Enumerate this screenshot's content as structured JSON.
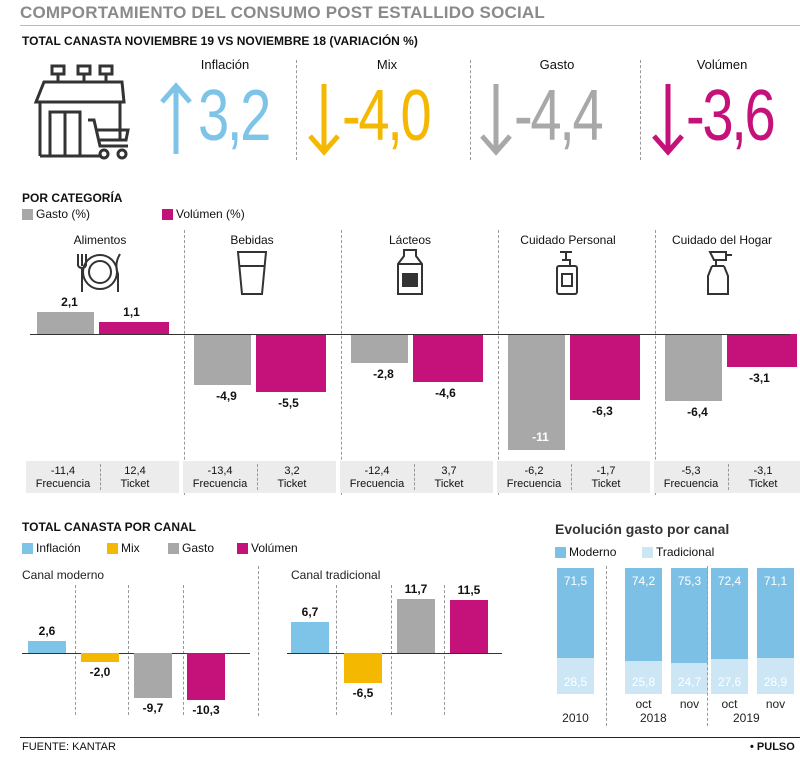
{
  "title": "COMPORTAMIENTO DEL CONSUMO POST ESTALLIDO SOCIAL",
  "subtitle": "TOTAL CANASTA NOVIEMBRE 19 VS NOVIEMBRE 18 (VARIACIÓN %)",
  "colors": {
    "inflacion": "#7ec4e8",
    "mix": "#f5b800",
    "gasto": "#a8a8a8",
    "volumen": "#c5117a",
    "moderno": "#7cc0e6",
    "tradicional": "#cce6f5"
  },
  "top_metrics": [
    {
      "label": "Inflación",
      "value": "3,2",
      "direction": "up",
      "color": "#7ec4e8"
    },
    {
      "label": "Mix",
      "value": "-4,0",
      "direction": "down",
      "color": "#f5b800"
    },
    {
      "label": "Gasto",
      "value": "-4,4",
      "direction": "down",
      "color": "#a8a8a8"
    },
    {
      "label": "Volúmen",
      "value": "-3,6",
      "direction": "down",
      "color": "#c5117a"
    }
  ],
  "categoria": {
    "heading": "POR CATEGORÍA",
    "legend": [
      {
        "label": "Gasto (%)",
        "color": "#a8a8a8"
      },
      {
        "label": "Volúmen (%)",
        "color": "#c5117a"
      }
    ],
    "foot_labels": {
      "frecuencia": "Frecuencia",
      "ticket": "Ticket"
    }
  },
  "canal": {
    "heading": "TOTAL CANASTA POR CANAL",
    "legend": [
      {
        "label": "Inflación",
        "color": "#7ec4e8"
      },
      {
        "label": "Mix",
        "color": "#f5b800"
      },
      {
        "label": "Gasto",
        "color": "#a8a8a8"
      },
      {
        "label": "Volúmen",
        "color": "#c5117a"
      }
    ]
  },
  "evolucion": {
    "heading": "Evolución gasto por canal",
    "legend": [
      {
        "label": "Moderno",
        "color": "#7cc0e6"
      },
      {
        "label": "Tradicional",
        "color": "#cce6f5"
      }
    ]
  },
  "chart_data": [
    {
      "type": "bar",
      "categories": [
        "Alimentos",
        "Bebidas",
        "Lácteos",
        "Cuidado Personal",
        "Cuidado del Hogar"
      ],
      "series": [
        {
          "name": "Gasto (%)",
          "values": [
            2.1,
            -4.9,
            -2.8,
            -11,
            -6.4
          ],
          "labels": [
            "2,1",
            "-4,9",
            "-2,8",
            "-11",
            "-6,4"
          ]
        },
        {
          "name": "Volúmen (%)",
          "values": [
            1.1,
            -5.5,
            -4.6,
            -6.3,
            -3.1
          ],
          "labels": [
            "1,1",
            "-5,5",
            "-4,6",
            "-6,3",
            "-3,1"
          ]
        }
      ],
      "frecuencia": [
        "-11,4",
        "-13,4",
        "-12,4",
        "-6,2",
        "-5,3"
      ],
      "ticket": [
        "12,4",
        "3,2",
        "3,7",
        "-1,7",
        "-3,1"
      ]
    },
    {
      "type": "bar",
      "title": "Canal moderno",
      "categories": [
        "Inflación",
        "Mix",
        "Gasto",
        "Volúmen"
      ],
      "values": [
        2.6,
        -2.0,
        -9.7,
        -10.3
      ],
      "labels": [
        "2,6",
        "-2,0",
        "-9,7",
        "-10,3"
      ]
    },
    {
      "type": "bar",
      "title": "Canal tradicional",
      "categories": [
        "Inflación",
        "Mix",
        "Gasto",
        "Volúmen"
      ],
      "values": [
        6.7,
        -6.5,
        11.7,
        11.5
      ],
      "labels": [
        "6,7",
        "-6,5",
        "11,7",
        "11,5"
      ]
    },
    {
      "type": "bar",
      "title": "Evolución gasto por canal",
      "stacked": true,
      "categories": [
        "2010",
        "oct 2018",
        "nov 2018",
        "oct 2019",
        "nov 2019"
      ],
      "tick_labels": [
        "2010",
        "oct",
        "nov",
        "oct",
        "nov"
      ],
      "year_labels": [
        "2018",
        "2019"
      ],
      "series": [
        {
          "name": "Moderno",
          "values": [
            71.5,
            74.2,
            75.3,
            72.4,
            71.1
          ],
          "labels": [
            "71,5",
            "74,2",
            "75,3",
            "72,4",
            "71,1"
          ]
        },
        {
          "name": "Tradicional",
          "values": [
            28.5,
            25.8,
            24.7,
            27.6,
            28.9
          ],
          "labels": [
            "28,5",
            "25,8",
            "24,7",
            "27,6",
            "28,9"
          ]
        }
      ]
    }
  ],
  "canal_titles": {
    "moderno": "Canal moderno",
    "tradicional": "Canal tradicional"
  },
  "source": "FUENTE: KANTAR",
  "brand": "• PULSO"
}
